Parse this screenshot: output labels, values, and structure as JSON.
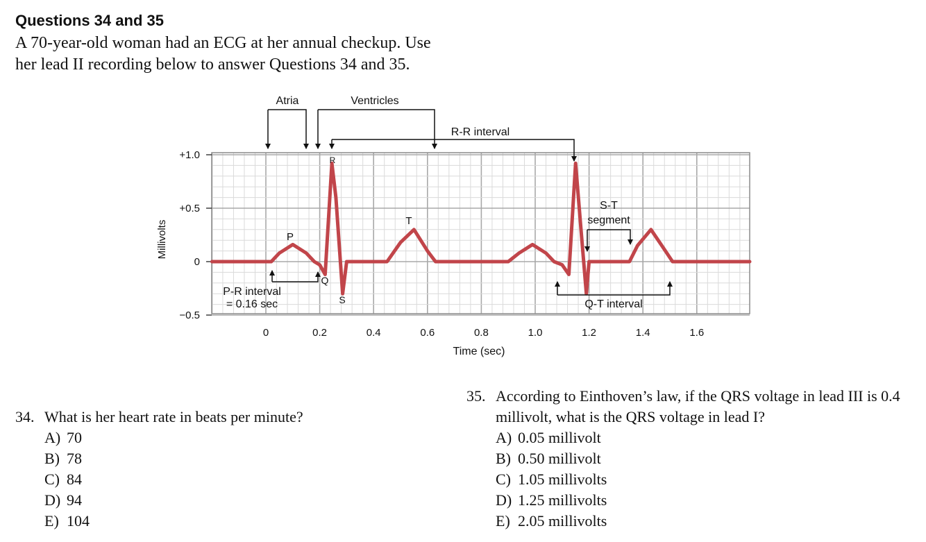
{
  "heading": "Questions 34 and 35",
  "intro_lines": [
    "A 70-year-old woman had an ECG at her annual checkup. Use",
    "her lead II recording below to answer Questions 34 and 35."
  ],
  "figure": {
    "ylabel": "Millivolts",
    "xlabel": "Time (sec)",
    "y_ticks": [
      "+1.0",
      "+0.5",
      "0",
      "−0.5"
    ],
    "x_ticks": [
      "0",
      "0.2",
      "0.4",
      "0.6",
      "0.8",
      "1.0",
      "1.2",
      "1.4",
      "1.6"
    ],
    "annotations": {
      "atria": "Atria",
      "ventricles": "Ventricles",
      "rr_interval": "R-R interval",
      "p": "P",
      "q": "Q",
      "r": "R",
      "s": "S",
      "t": "T",
      "pr_interval": "P-R interval",
      "pr_value": "= 0.16 sec",
      "st_segment_1": "S-T",
      "st_segment_2": "segment",
      "qt_interval": "Q-T interval"
    },
    "colors": {
      "trace": "#c1454a",
      "grid": "#d9d9d9",
      "frame": "#8a8a8a"
    },
    "chart_data": {
      "type": "line",
      "xlabel": "Time (sec)",
      "ylabel": "Millivolts",
      "xlim": [
        -0.2,
        1.8
      ],
      "ylim": [
        -0.5,
        1.0
      ],
      "series": [
        {
          "x": [
            -0.2,
            0.02,
            0.05,
            0.1,
            0.15,
            0.18,
            0.2,
            0.22,
            0.245,
            0.26,
            0.285,
            0.3,
            0.33,
            0.45,
            0.5,
            0.55,
            0.6,
            0.63,
            0.9,
            0.94,
            0.99,
            1.04,
            1.07,
            1.1,
            1.125,
            1.15,
            1.17,
            1.19,
            1.2,
            1.22,
            1.35,
            1.38,
            1.43,
            1.47,
            1.51,
            1.8
          ],
          "y": [
            0,
            0,
            0.08,
            0.16,
            0.08,
            0,
            -0.03,
            -0.12,
            0.92,
            0.6,
            -0.3,
            0,
            0,
            0,
            0.18,
            0.3,
            0.1,
            0,
            0,
            0.08,
            0.16,
            0.08,
            0,
            -0.03,
            -0.12,
            0.92,
            0.3,
            -0.3,
            0,
            0,
            0,
            0.15,
            0.3,
            0.15,
            0,
            0
          ]
        }
      ]
    }
  },
  "q34": {
    "number": "34.",
    "text": "What is her heart rate in beats per minute?",
    "options": [
      {
        "letter": "A)",
        "text": "70"
      },
      {
        "letter": "B)",
        "text": "78"
      },
      {
        "letter": "C)",
        "text": "84"
      },
      {
        "letter": "D)",
        "text": "94"
      },
      {
        "letter": "E)",
        "text": "104"
      }
    ]
  },
  "q35": {
    "number": "35.",
    "text": "According to Einthoven’s law, if the QRS voltage in lead III is 0.4 millivolt, what is the QRS voltage in lead I?",
    "options": [
      {
        "letter": "A)",
        "text": "0.05 millivolt"
      },
      {
        "letter": "B)",
        "text": "0.50 millivolt"
      },
      {
        "letter": "C)",
        "text": "1.05 millivolts"
      },
      {
        "letter": "D)",
        "text": "1.25 millivolts"
      },
      {
        "letter": "E)",
        "text": "2.05 millivolts"
      }
    ]
  }
}
